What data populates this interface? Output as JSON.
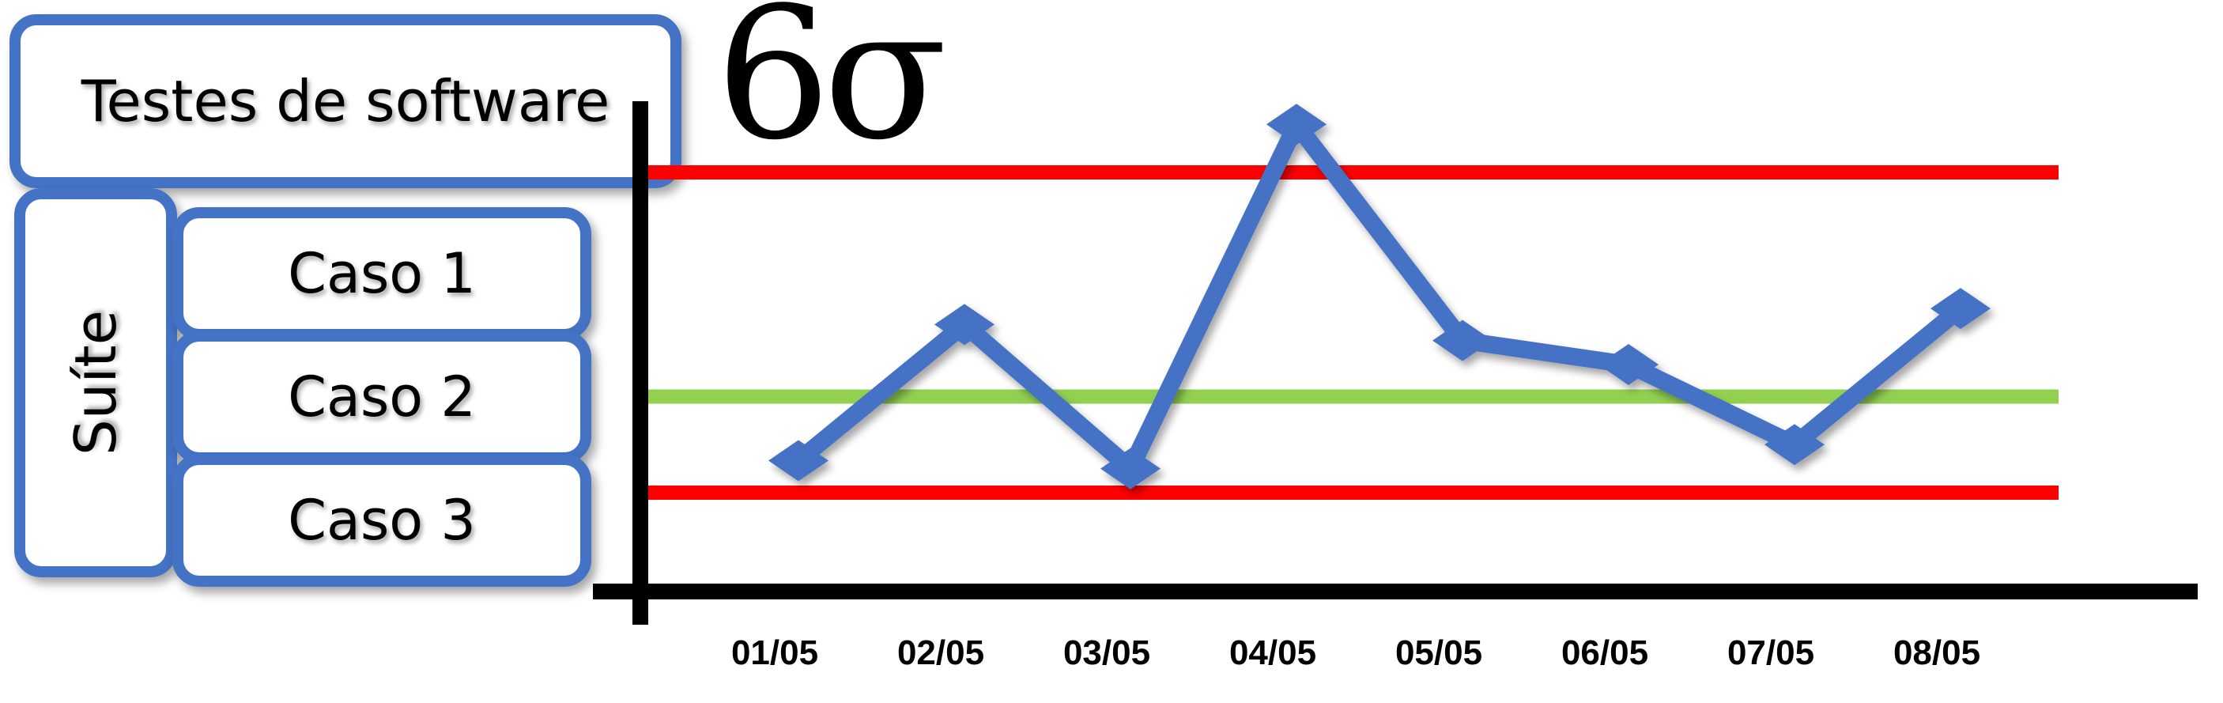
{
  "title": "Testes de software",
  "suite_label": "Suíte",
  "cases": [
    "Caso 1",
    "Caso 2",
    "Caso 3"
  ],
  "symbol": "6σ",
  "colors": {
    "box_border": "#4472C4",
    "series": "#4472C4",
    "control_limit": "#FF0000",
    "center_line": "#92D050",
    "axis": "#000000"
  },
  "chart_data": {
    "type": "line",
    "categories": [
      "01/05",
      "02/05",
      "03/05",
      "04/05",
      "05/05",
      "06/05",
      "07/05",
      "08/05"
    ],
    "values": [
      0.4,
      2.1,
      0.3,
      4.6,
      1.9,
      1.6,
      0.6,
      2.3
    ],
    "upper_control_limit": 4.0,
    "center_line": 1.2,
    "lower_control_limit": 0.0,
    "ylim": [
      -1.1,
      5.4
    ],
    "title": "",
    "xlabel": "",
    "ylabel": ""
  }
}
